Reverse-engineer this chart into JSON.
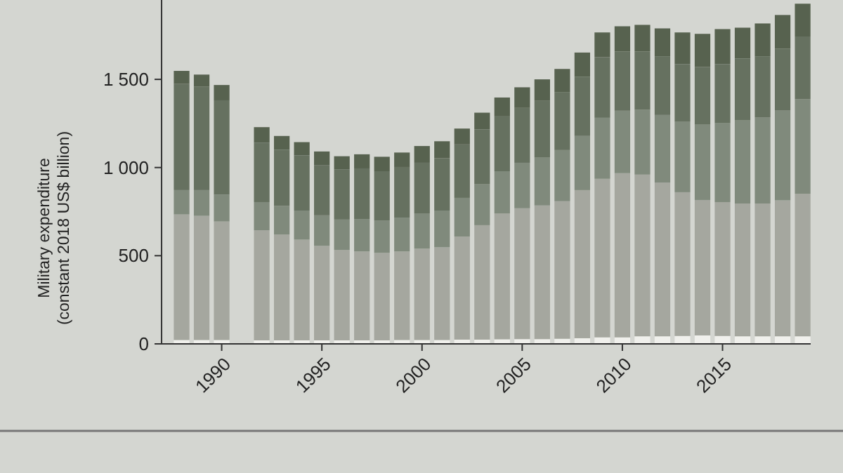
{
  "chart_data": {
    "type": "bar",
    "stacked": true,
    "ylabel": "Military expenditure\n(constant 2018 US$ billion)",
    "x": [
      1988,
      1989,
      1990,
      1992,
      1993,
      1994,
      1995,
      1996,
      1997,
      1998,
      1999,
      2000,
      2001,
      2002,
      2003,
      2004,
      2005,
      2006,
      2007,
      2008,
      2009,
      2010,
      2011,
      2012,
      2013,
      2014,
      2015,
      2016,
      2017,
      2018,
      2019
    ],
    "xlim": [
      1987,
      2019.4
    ],
    "xticks": [
      1990,
      1995,
      2000,
      2005,
      2010,
      2015
    ],
    "ylim": [
      0,
      1950
    ],
    "yticks": [
      0,
      500,
      {
        "value": 1000,
        "label": "1 000"
      },
      {
        "value": 1500,
        "label": "1 500"
      }
    ],
    "grid": false,
    "series": [
      {
        "color": "#f0f0ec",
        "values": [
          22,
          22,
          22,
          20,
          20,
          20,
          20,
          20,
          20,
          20,
          22,
          22,
          22,
          24,
          24,
          26,
          27,
          27,
          29,
          32,
          37,
          37,
          43,
          43,
          45,
          48,
          45,
          43,
          43,
          43,
          43
        ]
      },
      {
        "color": "#a5a79f",
        "values": [
          712,
          704,
          672,
          624,
          600,
          571,
          536,
          512,
          504,
          496,
          502,
          518,
          526,
          585,
          649,
          714,
          742,
          758,
          780,
          840,
          899,
          931,
          917,
          872,
          815,
          768,
          759,
          753,
          753,
          771,
          808
        ]
      },
      {
        "color": "#808a7c",
        "values": [
          138,
          146,
          152,
          160,
          162,
          165,
          173,
          173,
          184,
          184,
          192,
          200,
          208,
          219,
          234,
          239,
          258,
          271,
          290,
          307,
          346,
          354,
          367,
          383,
          399,
          427,
          447,
          471,
          489,
          511,
          537
        ]
      },
      {
        "color": "#667160",
        "values": [
          602,
          586,
          535,
          337,
          319,
          313,
          285,
          285,
          287,
          279,
          287,
          287,
          297,
          303,
          309,
          311,
          311,
          322,
          327,
          335,
          344,
          336,
          331,
          333,
          327,
          327,
          335,
          351,
          346,
          349,
          355
        ]
      },
      {
        "color": "#57624f",
        "values": [
          74,
          69,
          87,
          88,
          78,
          75,
          77,
          74,
          80,
          82,
          82,
          95,
          96,
          90,
          95,
          107,
          117,
          122,
          133,
          138,
          140,
          143,
          151,
          158,
          180,
          188,
          199,
          175,
          186,
          191,
          186
        ]
      }
    ]
  }
}
